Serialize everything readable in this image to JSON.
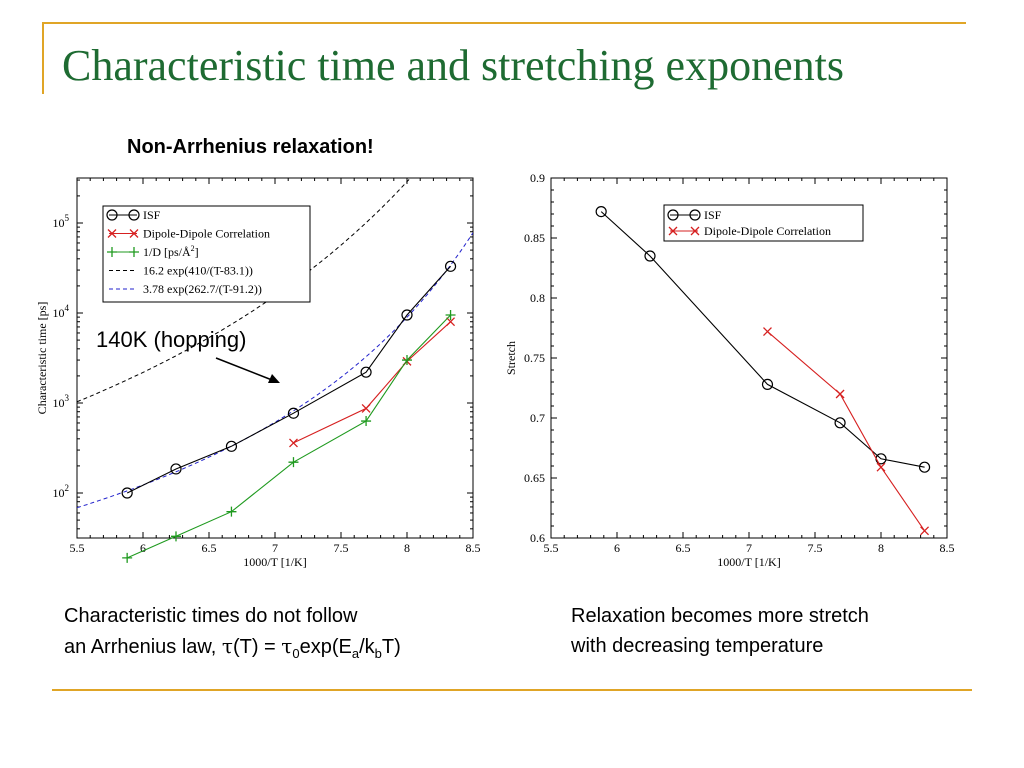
{
  "slide": {
    "title": "Characteristic time and stretching exponents",
    "subtitle": "Non-Arrhenius relaxation!",
    "callout": "140K (hopping)",
    "caption_left_line1": "Characteristic times do not follow",
    "caption_left_line2_prefix": "an Arrhenius law, ",
    "caption_left_formula": [
      "τ",
      "(T) = ",
      "τ",
      "0",
      "exp(E",
      "a",
      "/k",
      "b",
      "T)"
    ],
    "caption_right_line1": "Relaxation becomes more stretch",
    "caption_right_line2": "with decreasing temperature"
  },
  "chart_data": [
    {
      "type": "line",
      "xlabel": "1000/T [1/K]",
      "ylabel": "Characteristic time [ps]",
      "xlim": [
        5.5,
        8.5
      ],
      "ylim_log10": [
        1.5,
        5.5
      ],
      "yscale": "log",
      "xticks": [
        "5.5",
        "6",
        "6.5",
        "7",
        "7.5",
        "8",
        "8.5"
      ],
      "yticks": [
        {
          "base": "10",
          "exp": "2",
          "value": 100
        },
        {
          "base": "10",
          "exp": "3",
          "value": 1000
        },
        {
          "base": "10",
          "exp": "4",
          "value": 10000
        },
        {
          "base": "10",
          "exp": "5",
          "value": 100000
        }
      ],
      "legend_position": "top-left",
      "series": [
        {
          "name": "ISF",
          "color": "#000000",
          "marker": "circle",
          "x": [
            5.88,
            6.25,
            6.67,
            7.14,
            7.69,
            8.0,
            8.33
          ],
          "y": [
            100,
            185,
            330,
            770,
            2200,
            9500,
            33000
          ]
        },
        {
          "name": "Dipole-Dipole Correlation",
          "color": "#d62020",
          "marker": "x",
          "x": [
            7.14,
            7.69,
            8.0,
            8.33
          ],
          "y": [
            360,
            870,
            2900,
            8000
          ]
        },
        {
          "name": "1/D [ps/Å",
          "name_sup": "2",
          "name_end": "]",
          "color": "#1f9a1f",
          "marker": "plus",
          "x": [
            5.88,
            6.25,
            6.67,
            7.14,
            7.69,
            8.0,
            8.33
          ],
          "y": [
            19,
            33,
            62,
            220,
            630,
            3000,
            9500
          ]
        },
        {
          "name": "16.2 exp(410/(T-83.1))",
          "color": "#000000",
          "dash": true,
          "fit": {
            "a": 16.2,
            "b": 410,
            "t0": 83.1
          }
        },
        {
          "name": "3.78 exp(262.7/(T-91.2))",
          "color": "#2222cc",
          "dash": true,
          "fit": {
            "a": 3.78,
            "b": 262.7,
            "t0": 91.2
          }
        }
      ]
    },
    {
      "type": "line",
      "xlabel": "1000/T [1/K]",
      "ylabel": "Stretch",
      "xlim": [
        5.5,
        8.5
      ],
      "ylim": [
        0.6,
        0.9
      ],
      "xticks": [
        "5.5",
        "6",
        "6.5",
        "7",
        "7.5",
        "8",
        "8.5"
      ],
      "yticks": [
        "0.6",
        "0.65",
        "0.7",
        "0.75",
        "0.8",
        "0.85",
        "0.9"
      ],
      "legend_position": "top-right",
      "series": [
        {
          "name": "ISF",
          "color": "#000000",
          "marker": "circle",
          "x": [
            5.88,
            6.25,
            7.14,
            7.69,
            8.0,
            8.33
          ],
          "y": [
            0.872,
            0.835,
            0.728,
            0.696,
            0.666,
            0.659
          ]
        },
        {
          "name": "Dipole-Dipole Correlation",
          "color": "#d62020",
          "marker": "x",
          "x": [
            7.14,
            7.69,
            8.0,
            8.33
          ],
          "y": [
            0.772,
            0.72,
            0.659,
            0.606
          ]
        }
      ]
    }
  ]
}
